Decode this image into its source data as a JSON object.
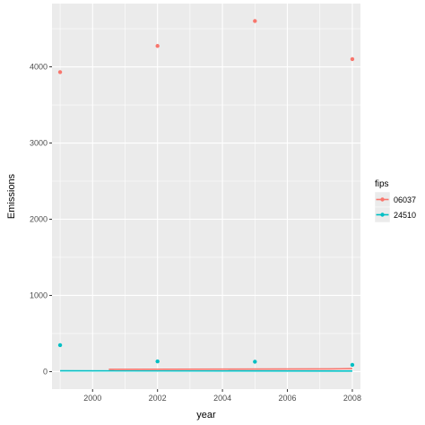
{
  "chart_data": {
    "type": "scatter",
    "title": "",
    "xlabel": "year",
    "ylabel": "Emissions",
    "xlim": [
      1998.75,
      2008.25
    ],
    "ylim": [
      -230,
      4830
    ],
    "x_ticks": [
      2000,
      2002,
      2004,
      2006,
      2008
    ],
    "x_tick_labels": [
      "2000",
      "2002",
      "2004",
      "2006",
      "2008"
    ],
    "y_ticks": [
      0,
      1000,
      2000,
      3000,
      4000
    ],
    "y_tick_labels": [
      "0",
      "1000",
      "2000",
      "3000",
      "4000"
    ],
    "grid": true,
    "legend": {
      "title": "fips",
      "position": "right"
    },
    "series": [
      {
        "name": "06037",
        "color": "#F8766D",
        "x": [
          1999,
          2002,
          2005,
          2008
        ],
        "y": [
          3931,
          4274,
          4601,
          4101
        ],
        "trend": [
          [
            2000.5,
            30
          ],
          [
            2007.3,
            35
          ],
          [
            2008,
            40
          ]
        ]
      },
      {
        "name": "24510",
        "color": "#00BFC4",
        "x": [
          1999,
          2002,
          2005,
          2008
        ],
        "y": [
          347,
          134,
          130,
          88
        ],
        "trend": [
          [
            1999,
            10
          ],
          [
            2008,
            8
          ]
        ]
      }
    ]
  }
}
